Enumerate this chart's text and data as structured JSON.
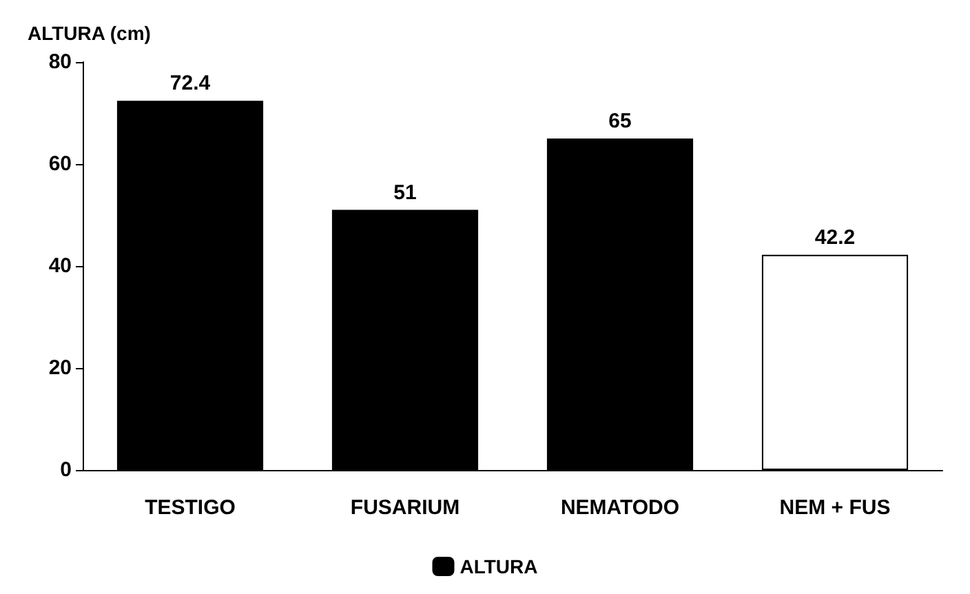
{
  "chart_data": {
    "type": "bar",
    "ylabel": "ALTURA (cm)",
    "categories": [
      "TESTIGO",
      "FUSARIUM",
      "NEMATODO",
      "NEM + FUS"
    ],
    "series": [
      {
        "name": "ALTURA",
        "color": "#000000",
        "colors": [
          "#000000",
          "#000000",
          "#000000",
          "#ffffff"
        ],
        "values": [
          72.4,
          51,
          65,
          42.2
        ]
      }
    ],
    "ylim": [
      0,
      80
    ],
    "yticks": [
      0,
      20,
      40,
      60,
      80
    ],
    "grid": false,
    "legend": "bottom",
    "data_labels": true
  }
}
